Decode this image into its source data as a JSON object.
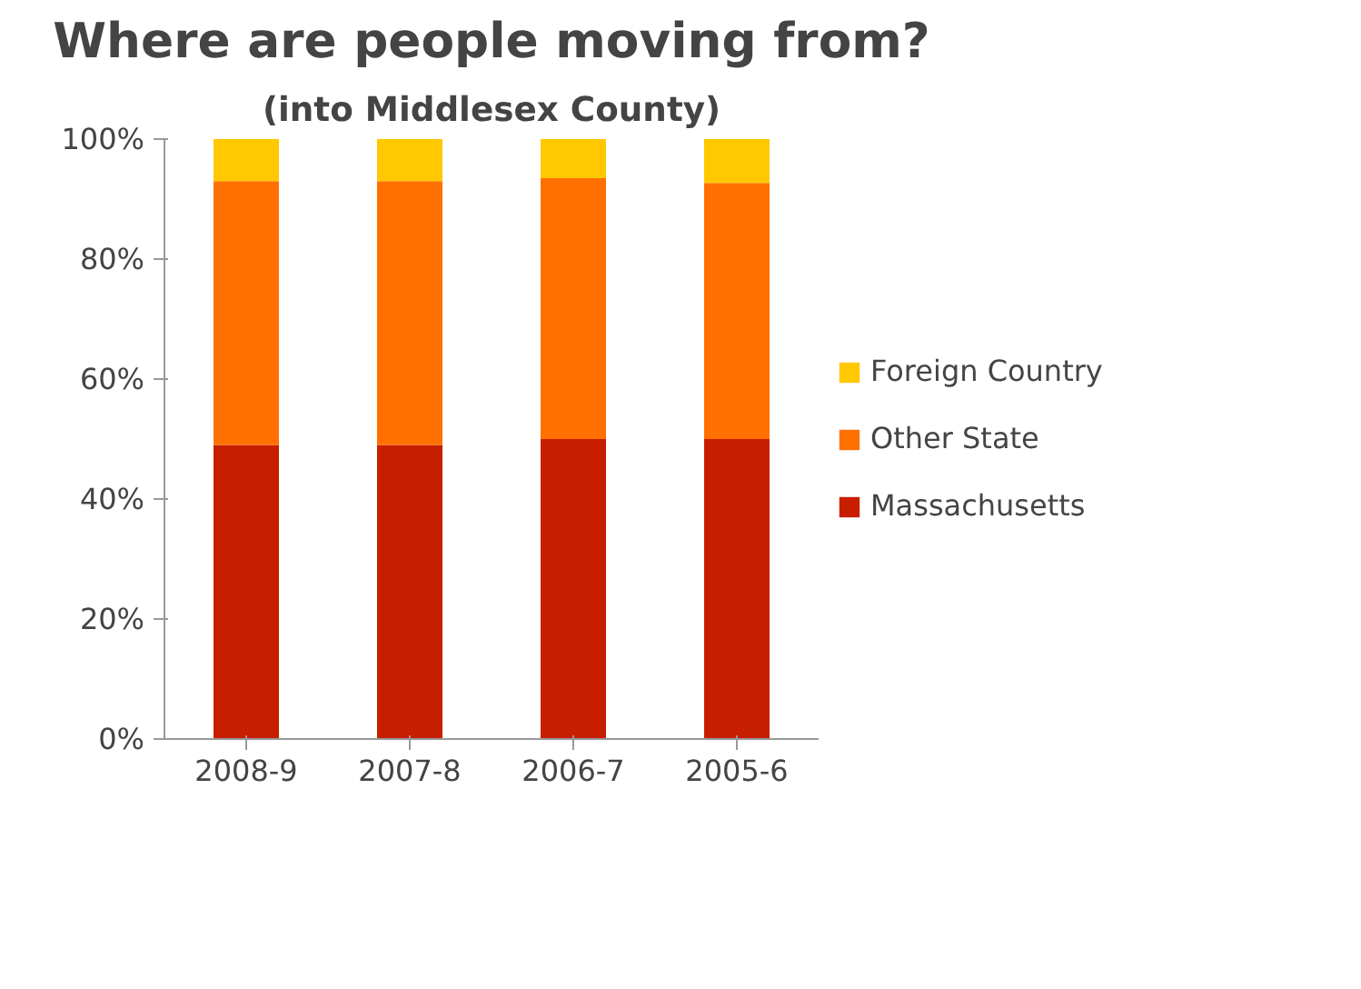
{
  "chart_data": {
    "type": "bar",
    "title": "Where are people moving from?",
    "subtitle": "(into Middlesex County)",
    "categories": [
      "2008-9",
      "2007-8",
      "2006-7",
      "2005-6"
    ],
    "stacked": true,
    "series": [
      {
        "name": "Massachusetts",
        "color": "#c81e00",
        "values": [
          49,
          49,
          50,
          50
        ]
      },
      {
        "name": "Other State",
        "color": "#ff7000",
        "values": [
          44,
          44,
          43.5,
          42.7
        ]
      },
      {
        "name": "Foreign Country",
        "color": "#ffc800",
        "values": [
          7,
          7,
          6.5,
          7.3
        ]
      }
    ],
    "ylim": [
      0,
      100
    ],
    "yticks": [
      {
        "value": 0,
        "label": "0%"
      },
      {
        "value": 20,
        "label": "20%"
      },
      {
        "value": 40,
        "label": "40%"
      },
      {
        "value": 60,
        "label": "60%"
      },
      {
        "value": 80,
        "label": "80%"
      },
      {
        "value": 100,
        "label": "100%"
      }
    ],
    "grid": false,
    "legend": "right"
  }
}
